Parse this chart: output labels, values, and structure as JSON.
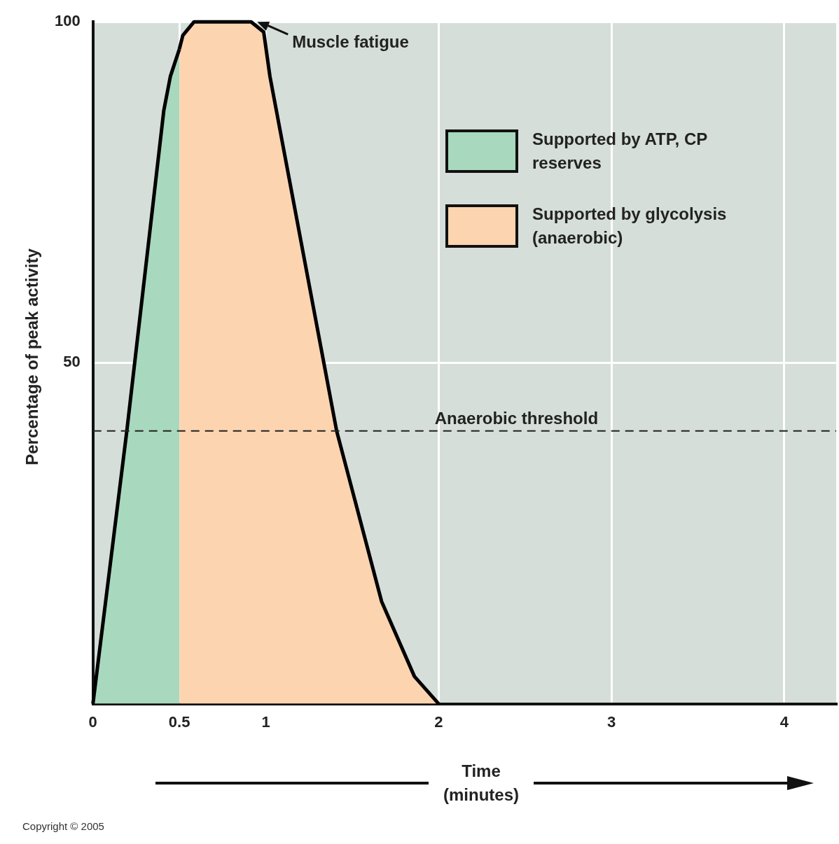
{
  "chart_data": {
    "type": "area",
    "xlabel": "Time (minutes)",
    "ylabel": "Percentage of peak activity",
    "xlim": [
      0,
      4.3
    ],
    "xticks": [
      0,
      0.5,
      1,
      2,
      3,
      4
    ],
    "ylim": [
      0,
      100
    ],
    "yticks": [
      50,
      100
    ],
    "grid": true,
    "legend": "top right",
    "series": [
      {
        "name": "Supported by ATP, CP reserves",
        "color": "#a8d8bd",
        "x": [
          0,
          0.196,
          0.41,
          0.448,
          0.5
        ],
        "values": [
          0,
          40,
          87,
          92,
          96
        ]
      },
      {
        "name": "Supported by glycolysis (anaerobic)",
        "color": "#fdd4b0",
        "x": [
          0.5,
          0.52,
          0.585,
          0.915,
          0.988,
          1.024,
          1.41,
          1.67,
          1.86,
          2
        ],
        "values": [
          96,
          98,
          100,
          100,
          98.5,
          92,
          40,
          15,
          4,
          0
        ]
      }
    ],
    "ref_lines": [
      {
        "axis": "y",
        "value": 40,
        "label": "Anaerobic threshold",
        "line_style": "dashed"
      }
    ],
    "annotations": [
      {
        "text": "Muscle fatigue",
        "x": 0.95,
        "y": 100
      },
      "Copyright © 2005"
    ]
  }
}
